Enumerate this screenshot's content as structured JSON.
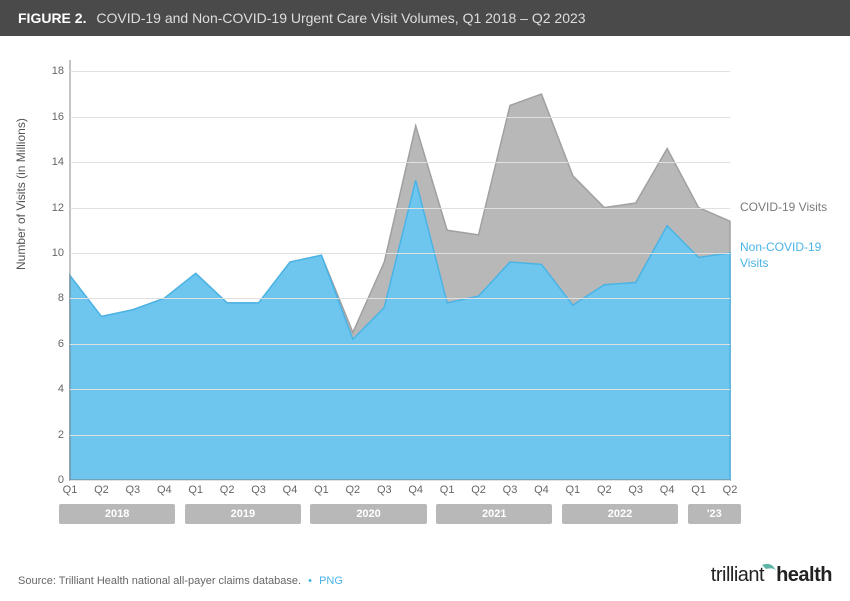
{
  "header": {
    "label": "FIGURE 2.",
    "title": "COVID-19 and Non-COVID-19 Urgent Care Visit Volumes, Q1 2018 – Q2 2023"
  },
  "chart": {
    "type": "area",
    "ylabel": "Number of Visits (in Millions)",
    "ylim": [
      0,
      18.5
    ],
    "yticks": [
      0,
      2,
      4,
      6,
      8,
      10,
      12,
      14,
      16,
      18
    ],
    "background_color": "#ffffff",
    "grid_color": "#e0e0e0",
    "axis_color": "#888888",
    "categories": [
      "Q1",
      "Q2",
      "Q3",
      "Q4",
      "Q1",
      "Q2",
      "Q3",
      "Q4",
      "Q1",
      "Q2",
      "Q3",
      "Q4",
      "Q1",
      "Q2",
      "Q3",
      "Q4",
      "Q1",
      "Q2",
      "Q3",
      "Q4",
      "Q1",
      "Q2"
    ],
    "years": [
      {
        "label": "2018",
        "start": 0,
        "end": 3
      },
      {
        "label": "2019",
        "start": 4,
        "end": 7
      },
      {
        "label": "2020",
        "start": 8,
        "end": 11
      },
      {
        "label": "2021",
        "start": 12,
        "end": 15
      },
      {
        "label": "2022",
        "start": 16,
        "end": 19
      },
      {
        "label": "'23",
        "start": 20,
        "end": 21
      }
    ],
    "series": [
      {
        "name": "Non-COVID-19 Visits",
        "color": "#6ec6ee",
        "stroke": "#4ab4e6",
        "values": [
          9.0,
          7.2,
          7.5,
          8.0,
          9.1,
          7.8,
          7.8,
          9.6,
          9.9,
          6.2,
          7.6,
          13.2,
          7.8,
          8.1,
          9.6,
          9.5,
          7.7,
          8.6,
          8.7,
          11.2,
          9.8,
          10.0
        ]
      },
      {
        "name": "COVID-19 Visits",
        "color": "#b8b8b8",
        "stroke": "#a0a0a0",
        "values": [
          9.0,
          7.2,
          7.5,
          8.0,
          9.1,
          7.8,
          7.8,
          9.6,
          9.9,
          6.5,
          9.6,
          15.6,
          11.0,
          10.8,
          16.5,
          17.0,
          13.4,
          12.0,
          12.2,
          14.6,
          12.0,
          11.4
        ]
      }
    ],
    "legend": [
      {
        "text": "COVID-19 Visits",
        "color": "#7a7a7a"
      },
      {
        "text": "Non-COVID-19 Visits",
        "color": "#4ab4e6"
      }
    ]
  },
  "footer": {
    "source": "Source: Trilliant Health national all-payer claims database.",
    "link": "PNG",
    "logo_part1": "trilliant",
    "logo_part2": "health"
  }
}
